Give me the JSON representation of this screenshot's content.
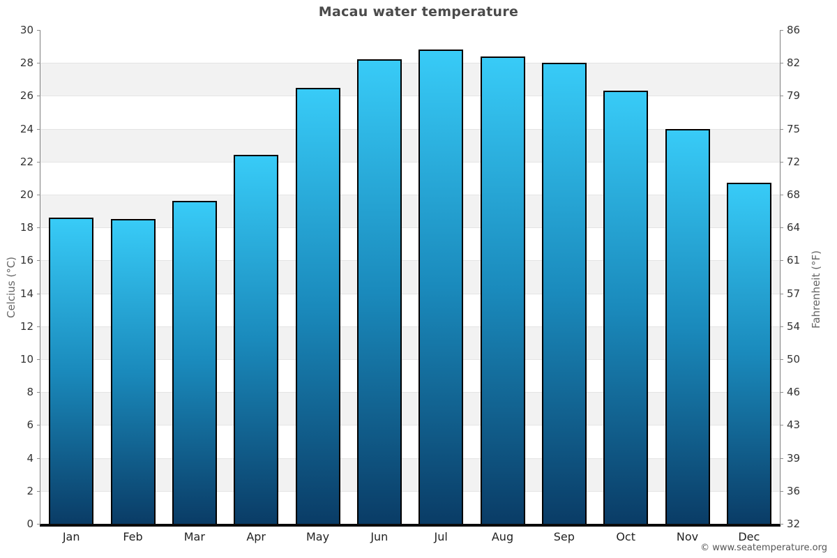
{
  "title": "Macau water temperature",
  "footer": "© www.seatemperature.org",
  "chart_data": {
    "type": "bar",
    "title": "Macau water temperature",
    "categories": [
      "Jan",
      "Feb",
      "Mar",
      "Apr",
      "May",
      "Jun",
      "Jul",
      "Aug",
      "Sep",
      "Oct",
      "Nov",
      "Dec"
    ],
    "values": [
      18.6,
      18.5,
      19.6,
      22.4,
      26.5,
      28.2,
      28.8,
      28.4,
      28.0,
      26.3,
      24.0,
      20.7
    ],
    "xlabel": "",
    "ylabel_left": "Celcius (°C)",
    "ylabel_right": "Fahrenheit (°F)",
    "ylim": [
      0,
      30
    ],
    "ytick_step": 2,
    "yticks_left_labels": [
      "30",
      "28",
      "26",
      "24",
      "22",
      "20",
      "18",
      "16",
      "14",
      "12",
      "10",
      "8",
      "6",
      "4",
      "2",
      "0"
    ],
    "yticks_right_labels": [
      "86",
      "82",
      "79",
      "75",
      "72",
      "68",
      "64",
      "61",
      "57",
      "54",
      "50",
      "46",
      "43",
      "39",
      "36",
      "32"
    ],
    "legend_position": "none",
    "grid": "alternating horizontal bands every 2°C",
    "colors": {
      "bar_gradient_top": "#38cbf7",
      "bar_gradient_mid": "#1a8abc",
      "bar_gradient_bottom": "#0a3c66",
      "bar_border": "#000000",
      "band_gray": "#f2f2f2",
      "band_white": "#ffffff",
      "gridline": "#e4e4e4",
      "axis_line": "#7d7d7d",
      "baseline": "#0b0b0b",
      "title_text": "#4a4a4a",
      "tick_text": "#333333",
      "axis_title_text": "#666666",
      "footer_text": "#555555"
    }
  }
}
